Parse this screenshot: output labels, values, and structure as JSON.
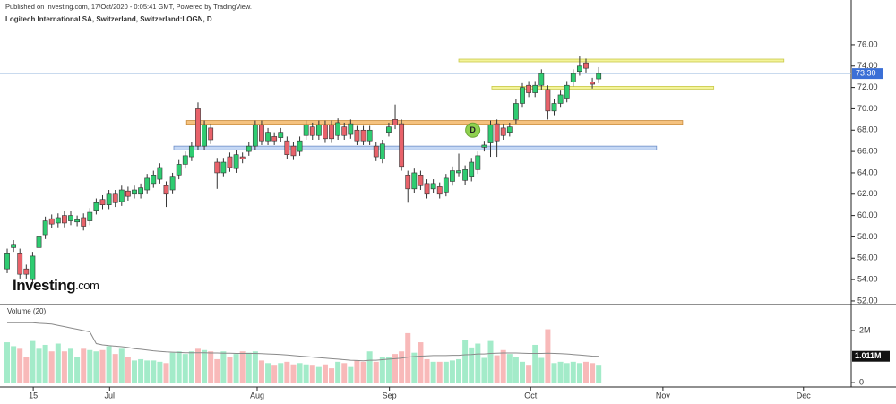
{
  "header": {
    "published": "Published on Investing.com, 17/Oct/2020 - 0:05:41 GMT, Powered by TradingView.",
    "logo_main": "Investing",
    "logo_suffix": ".com"
  },
  "chart_data": [
    {
      "type": "candlestick",
      "title": "Logitech International SA, Switzerland, Switzerland:LOGN, D",
      "up_color": "#2ecc71",
      "down_color": "#e8626a",
      "open": [
        55.0,
        57.0,
        56.5,
        55.0,
        54.0,
        57.0,
        58.2,
        59.7,
        59.3,
        60.0,
        59.5,
        59.4,
        59.8,
        59.5,
        60.5,
        61.5,
        61.0,
        62.0,
        61.3,
        62.3,
        62.0,
        62.0,
        62.4,
        63.0,
        63.4,
        62.8,
        62.4,
        63.8,
        64.8,
        65.5,
        70.0,
        66.5,
        68.2,
        65.0,
        64.0,
        65.5,
        64.4,
        65.5,
        66.0,
        66.5,
        68.5,
        67.0,
        67.4,
        67.3,
        67.0,
        66.5,
        66.0,
        67.5,
        68.3,
        67.5,
        68.5,
        68.5,
        67.5,
        68.3,
        67.6,
        68.0,
        68.0,
        67.0,
        66.5,
        65.3,
        67.8,
        69.0,
        68.6,
        63.8,
        62.5,
        63.8,
        63.0,
        62.5,
        62.7,
        62.2,
        63.2,
        64.0,
        63.3,
        63.6,
        64.3,
        66.4,
        66.8,
        68.6,
        68.2,
        67.8,
        69.0,
        70.5,
        72.2,
        71.5,
        72.2,
        71.8,
        69.8,
        70.5,
        71.0,
        72.5,
        73.5,
        74.3,
        72.5,
        72.8
      ],
      "high": [
        56.9,
        57.7,
        56.9,
        55.4,
        56.6,
        58.4,
        59.9,
        60.1,
        60.2,
        60.4,
        60.4,
        60.0,
        60.2,
        60.7,
        61.6,
        61.9,
        62.4,
        62.4,
        62.8,
        62.7,
        62.8,
        63.0,
        63.9,
        64.2,
        64.9,
        63.2,
        64.0,
        65.2,
        66.0,
        66.9,
        70.6,
        68.9,
        68.6,
        65.4,
        65.4,
        65.9,
        66.1,
        65.9,
        66.9,
        68.9,
        68.9,
        68.2,
        67.8,
        68.2,
        67.4,
        66.9,
        67.4,
        68.9,
        68.7,
        68.9,
        68.9,
        68.9,
        69.1,
        68.7,
        69.0,
        68.4,
        68.4,
        68.4,
        66.9,
        67.1,
        68.7,
        70.4,
        69.0,
        64.2,
        64.4,
        64.2,
        63.4,
        63.4,
        63.1,
        63.9,
        64.6,
        65.8,
        64.7,
        65.4,
        66.0,
        67.0,
        68.9,
        69.0,
        68.6,
        68.7,
        70.9,
        72.4,
        72.6,
        72.6,
        73.7,
        72.2,
        70.9,
        71.7,
        72.6,
        73.7,
        74.9,
        74.7,
        72.9,
        73.9
      ],
      "low": [
        54.6,
        56.6,
        54.1,
        54.1,
        53.6,
        56.6,
        57.8,
        58.8,
        58.9,
        58.9,
        59.1,
        59.0,
        58.6,
        59.1,
        60.1,
        60.6,
        60.6,
        60.8,
        60.9,
        61.4,
        61.6,
        61.6,
        62.0,
        62.6,
        63.0,
        60.8,
        62.0,
        63.4,
        64.4,
        65.1,
        66.1,
        66.1,
        66.7,
        62.5,
        63.6,
        64.1,
        64.0,
        64.9,
        65.6,
        66.1,
        66.6,
        66.6,
        66.6,
        66.9,
        65.3,
        65.2,
        65.6,
        67.1,
        67.1,
        67.1,
        66.8,
        66.8,
        67.1,
        67.1,
        67.2,
        66.6,
        66.6,
        66.6,
        65.1,
        64.9,
        67.4,
        68.1,
        64.2,
        61.2,
        62.1,
        62.4,
        61.6,
        62.1,
        61.6,
        61.8,
        62.8,
        63.6,
        62.9,
        63.2,
        63.9,
        66.0,
        65.5,
        65.5,
        67.1,
        67.4,
        68.6,
        70.1,
        71.1,
        71.1,
        71.8,
        69.0,
        69.4,
        70.1,
        70.6,
        72.1,
        73.1,
        73.4,
        71.9,
        72.4
      ],
      "close": [
        56.5,
        57.3,
        54.5,
        54.5,
        56.2,
        58.0,
        59.5,
        59.2,
        59.8,
        59.3,
        60.0,
        59.6,
        59.0,
        60.3,
        61.2,
        61.0,
        62.0,
        61.2,
        62.4,
        61.8,
        62.4,
        62.6,
        63.5,
        63.8,
        64.5,
        62.0,
        63.6,
        64.8,
        65.6,
        66.5,
        66.5,
        68.5,
        67.1,
        64.0,
        65.0,
        64.5,
        65.7,
        65.3,
        66.5,
        68.5,
        67.0,
        67.8,
        67.0,
        67.8,
        65.7,
        65.6,
        67.0,
        68.5,
        67.5,
        68.5,
        67.2,
        67.2,
        68.7,
        67.5,
        68.6,
        67.0,
        67.0,
        68.0,
        65.5,
        66.7,
        68.3,
        68.5,
        64.6,
        62.5,
        64.0,
        62.8,
        62.0,
        63.0,
        62.0,
        63.5,
        64.2,
        64.2,
        64.3,
        65.0,
        65.6,
        66.6,
        68.5,
        67.0,
        67.5,
        68.3,
        70.5,
        72.0,
        71.5,
        72.2,
        73.3,
        69.8,
        70.5,
        71.3,
        72.2,
        73.3,
        74.0,
        73.8,
        72.3,
        73.3
      ],
      "xlim": [
        -1.13,
        132.7
      ],
      "ylim": [
        51.66,
        80.19
      ],
      "yticks": [
        {
          "value": 52,
          "label": "52.00"
        },
        {
          "value": 54,
          "label": "54.00"
        },
        {
          "value": 56,
          "label": "56.00"
        },
        {
          "value": 58,
          "label": "58.00"
        },
        {
          "value": 60,
          "label": "60.00"
        },
        {
          "value": 62,
          "label": "62.00"
        },
        {
          "value": 64,
          "label": "64.00"
        },
        {
          "value": 66,
          "label": "66.00"
        },
        {
          "value": 68,
          "label": "68.00"
        },
        {
          "value": 70,
          "label": "70.00"
        },
        {
          "value": 72,
          "label": "72.00"
        },
        {
          "value": 74,
          "label": "74.00"
        },
        {
          "value": 76,
          "label": "76.00"
        }
      ],
      "last_price": {
        "value": 73.3,
        "label": "73.30",
        "color": "#3b6fd6"
      },
      "zones": [
        {
          "low": 74.4,
          "high": 74.65,
          "x0": 71.0,
          "x1": 122.1,
          "color": "#f4f49a",
          "border": "#c9c94a"
        },
        {
          "low": 71.85,
          "high": 72.1,
          "x0": 76.2,
          "x1": 111.1,
          "color": "#f4f49a",
          "border": "#c9c94a"
        },
        {
          "low": 68.55,
          "high": 68.9,
          "x0": 28.2,
          "x1": 106.2,
          "color": "#f5c27f",
          "border": "#c98a3a"
        },
        {
          "low": 66.15,
          "high": 66.5,
          "x0": 26.2,
          "x1": 102.1,
          "color": "#c5d8f5",
          "border": "#6e8fc8"
        }
      ],
      "marker": {
        "x": 73.2,
        "y": 68.0,
        "label": "D",
        "color": "#8fd14f"
      }
    },
    {
      "type": "bar",
      "title": "Volume (20)",
      "series": [
        {
          "up_color": "#a3ebc9",
          "down_color": "#f8b9b9",
          "values": [
            1.55,
            1.4,
            1.3,
            1.0,
            1.6,
            1.3,
            1.45,
            1.2,
            1.5,
            1.2,
            1.3,
            1.0,
            1.3,
            1.25,
            1.2,
            1.25,
            1.4,
            1.1,
            1.3,
            1.0,
            0.85,
            0.9,
            0.85,
            0.85,
            0.8,
            0.75,
            1.15,
            1.2,
            1.1,
            1.2,
            1.3,
            1.25,
            1.2,
            0.9,
            1.2,
            1.0,
            1.1,
            1.2,
            1.15,
            1.2,
            0.85,
            0.75,
            0.65,
            0.75,
            0.8,
            0.7,
            0.75,
            0.7,
            0.65,
            0.6,
            0.7,
            0.55,
            0.8,
            0.75,
            0.6,
            0.85,
            0.8,
            1.2,
            0.8,
            1.0,
            1.0,
            1.1,
            1.2,
            1.9,
            1.15,
            1.55,
            0.9,
            0.8,
            0.8,
            0.8,
            0.85,
            0.9,
            1.65,
            1.35,
            1.5,
            0.95,
            1.6,
            1.05,
            1.25,
            1.1,
            1.0,
            0.8,
            0.65,
            1.45,
            0.95,
            2.05,
            0.75,
            0.8,
            0.75,
            0.8,
            0.75,
            0.8,
            0.75,
            0.65
          ]
        },
        {
          "type": "line",
          "color": "#8a8a8a",
          "values": [
            2.3,
            2.3,
            2.3,
            2.3,
            2.3,
            2.28,
            2.27,
            2.25,
            2.2,
            2.15,
            2.1,
            2.05,
            2.0,
            1.95,
            1.5,
            1.45,
            1.42,
            1.4,
            1.38,
            1.35,
            1.3,
            1.28,
            1.25,
            1.22,
            1.2,
            1.18,
            1.17,
            1.16,
            1.15,
            1.15,
            1.15,
            1.15,
            1.14,
            1.14,
            1.13,
            1.13,
            1.12,
            1.12,
            1.12,
            1.12,
            1.11,
            1.1,
            1.09,
            1.08,
            1.06,
            1.04,
            1.02,
            1.0,
            0.98,
            0.96,
            0.94,
            0.92,
            0.9,
            0.88,
            0.86,
            0.85,
            0.84,
            0.86,
            0.86,
            0.88,
            0.9,
            0.92,
            0.94,
            0.98,
            1.0,
            1.02,
            1.03,
            1.04,
            1.04,
            1.04,
            1.05,
            1.05,
            1.07,
            1.08,
            1.1,
            1.1,
            1.12,
            1.13,
            1.14,
            1.14,
            1.14,
            1.13,
            1.12,
            1.12,
            1.12,
            1.13,
            1.12,
            1.11,
            1.1,
            1.08,
            1.06,
            1.04,
            1.02,
            1.011
          ],
          "last_value": {
            "value": 1.011,
            "label": "1.011M"
          }
        }
      ],
      "ylim": [
        -0.17,
        2.93
      ],
      "yticks": [
        0,
        {
          "value": 2,
          "label": "2M"
        }
      ],
      "xticks": [
        {
          "value": 4.1,
          "label": "15"
        },
        {
          "value": 16.1,
          "label": "Jul"
        },
        {
          "value": 39.3,
          "label": "Aug"
        },
        {
          "value": 60.1,
          "label": "Sep"
        },
        {
          "value": 82.3,
          "label": "Oct"
        },
        {
          "value": 103.1,
          "label": "Nov"
        },
        {
          "value": 125.2,
          "label": "Dec"
        }
      ]
    }
  ]
}
